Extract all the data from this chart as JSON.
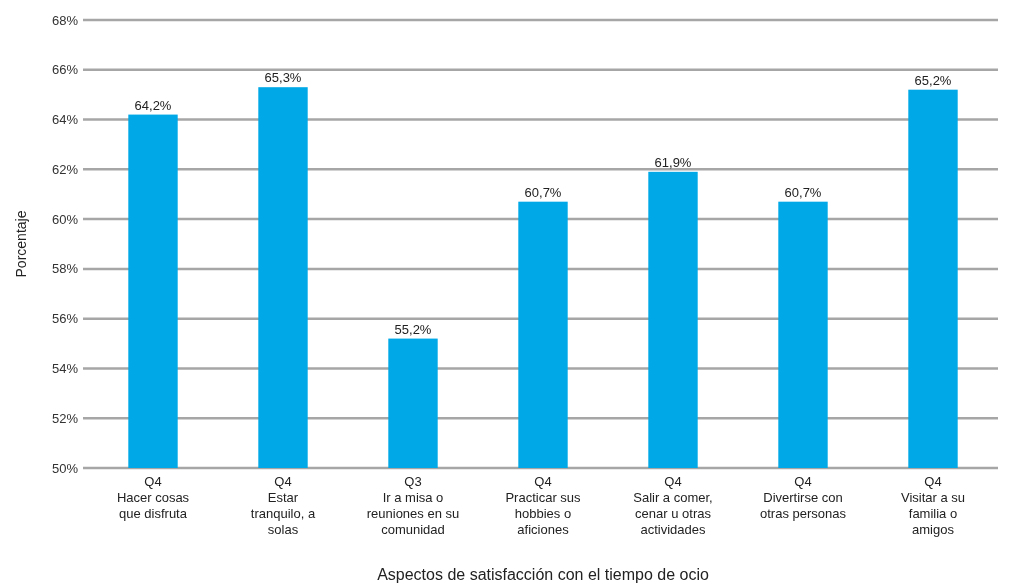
{
  "chart_data": {
    "type": "bar",
    "xlabel": "Aspectos de satisfacción con el tiempo de ocio",
    "ylabel": "Porcentaje",
    "categories": [
      "Q4\nHacer cosas\nque disfruta",
      "Q4\nEstar\ntranquilo, a\nsolas",
      "Q3\nIr a misa o\nreuniones en su\ncomunidad",
      "Q4\nPracticar sus\nhobbies o\naficiones",
      "Q4\nSalir a comer,\ncenar u otras\nactividades",
      "Q4\nDivertirse con\notras personas",
      "Q4\nVisitar a su\nfamilia o\namigos"
    ],
    "values": [
      64.2,
      65.3,
      55.2,
      60.7,
      61.9,
      60.7,
      65.2
    ],
    "value_labels": [
      "64,2%",
      "65,3%",
      "55,2%",
      "60,7%",
      "61,9%",
      "60,7%",
      "65,2%"
    ],
    "color": "#00a8e8",
    "ylim": [
      50,
      68
    ],
    "yticks": [
      {
        "value": 50,
        "label": "50%"
      },
      {
        "value": 52,
        "label": "52%"
      },
      {
        "value": 54,
        "label": "54%"
      },
      {
        "value": 56,
        "label": "56%"
      },
      {
        "value": 58,
        "label": "58%"
      },
      {
        "value": 60,
        "label": "60%"
      },
      {
        "value": 62,
        "label": "62%"
      },
      {
        "value": 64,
        "label": "64%"
      },
      {
        "value": 66,
        "label": "66%"
      },
      {
        "value": 68,
        "label": "68%"
      }
    ],
    "grid": "y"
  }
}
